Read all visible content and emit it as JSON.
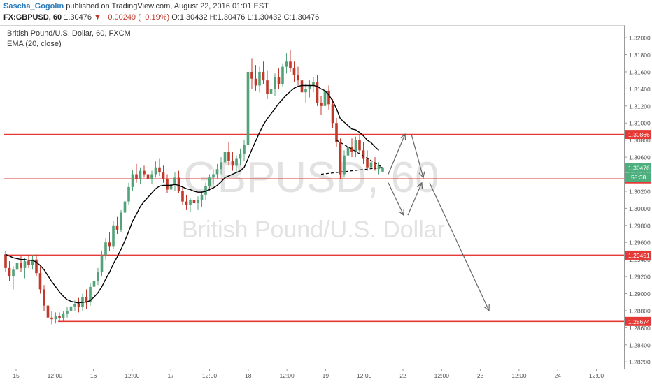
{
  "header": {
    "author": "Sascha_Gogolin",
    "published": " published on TradingView.com, August 22, 2016 01:01 EST",
    "symbol": "FX:GBPUSD, 60",
    "last": " 1.30476 ",
    "change": "▼ −0.00249 (−0.19%)",
    "ohlc": " O:1.30432 H:1.30476 L:1.30432 C:1.30476"
  },
  "legend": {
    "series": "British Pound/U.S. Dollar, 60, FXCM",
    "indicator": "EMA (20, close)"
  },
  "watermark": {
    "symbol": "GBPUSD, 60",
    "name": "British Pound/U.S. Dollar"
  },
  "colors": {
    "up": "#53a37a",
    "down": "#c0392b",
    "level": "#e53935",
    "ema": "#000000",
    "arrow": "#666666",
    "current": "#4caf7d"
  },
  "chart_data": {
    "type": "candlestick",
    "instrument": "GBPUSD",
    "timeframe": "60",
    "x_ticks": [
      "15",
      "12:00",
      "16",
      "12:00",
      "17",
      "12:00",
      "18",
      "12:00",
      "19",
      "12:00",
      "22",
      "12:00",
      "23",
      "12:00",
      "24",
      "12:00"
    ],
    "y_ticks": [
      1.282,
      1.284,
      1.286,
      1.288,
      1.29,
      1.292,
      1.294,
      1.296,
      1.298,
      1.3,
      1.302,
      1.304,
      1.306,
      1.308,
      1.31,
      1.312,
      1.314,
      1.316,
      1.318,
      1.32
    ],
    "y_tick_labels": [
      "1.28200",
      "1.28400",
      "1.28600",
      "1.28800",
      "1.29000",
      "1.29200",
      "1.29400",
      "1.29600",
      "1.29800",
      "1.30000",
      "1.30200",
      "1.30400",
      "1.30600",
      "1.30800",
      "1.31000",
      "1.31200",
      "1.31400",
      "1.31600",
      "1.31800",
      "1.32000"
    ],
    "ylim": [
      1.2812,
      1.3214
    ],
    "levels": [
      {
        "value": 1.30866,
        "label": "1.30866",
        "x_start": 0
      },
      {
        "value": 1.30345,
        "label": "1.30345",
        "x_start": 0
      },
      {
        "value": 1.29451,
        "label": "1.29451",
        "x_start": 0
      },
      {
        "value": 1.28674,
        "label": "1.28674",
        "x_start": 14
      }
    ],
    "current_price": {
      "value": 1.30476,
      "label": "1.30476",
      "timer": "58:38"
    },
    "ohlc": [
      [
        1.2946,
        1.295,
        1.2925,
        1.293
      ],
      [
        1.293,
        1.2938,
        1.2915,
        1.292
      ],
      [
        1.292,
        1.2932,
        1.2905,
        1.2928
      ],
      [
        1.2928,
        1.294,
        1.2922,
        1.2936
      ],
      [
        1.2936,
        1.2944,
        1.2925,
        1.293
      ],
      [
        1.293,
        1.2942,
        1.2918,
        1.2938
      ],
      [
        1.2938,
        1.2946,
        1.293,
        1.2934
      ],
      [
        1.2934,
        1.2945,
        1.2928,
        1.294
      ],
      [
        1.294,
        1.2946,
        1.292,
        1.2924
      ],
      [
        1.2924,
        1.2932,
        1.29,
        1.2905
      ],
      [
        1.2905,
        1.291,
        1.288,
        1.2886
      ],
      [
        1.2886,
        1.2892,
        1.2868,
        1.2872
      ],
      [
        1.2872,
        1.288,
        1.2864,
        1.287
      ],
      [
        1.287,
        1.2878,
        1.2865,
        1.2874
      ],
      [
        1.2874,
        1.2878,
        1.2867,
        1.2871
      ],
      [
        1.2871,
        1.2879,
        1.2868,
        1.2876
      ],
      [
        1.2876,
        1.2884,
        1.2872,
        1.288
      ],
      [
        1.288,
        1.2888,
        1.2874,
        1.2885
      ],
      [
        1.2885,
        1.2892,
        1.288,
        1.2888
      ],
      [
        1.2888,
        1.2895,
        1.2878,
        1.2884
      ],
      [
        1.2884,
        1.29,
        1.288,
        1.2896
      ],
      [
        1.2896,
        1.2905,
        1.2882,
        1.289
      ],
      [
        1.289,
        1.2912,
        1.2886,
        1.2908
      ],
      [
        1.2908,
        1.292,
        1.29,
        1.2915
      ],
      [
        1.2915,
        1.293,
        1.291,
        1.2925
      ],
      [
        1.2925,
        1.295,
        1.292,
        1.2945
      ],
      [
        1.2945,
        1.2965,
        1.294,
        1.296
      ],
      [
        1.296,
        1.2972,
        1.295,
        1.2955
      ],
      [
        1.2955,
        1.2985,
        1.2952,
        1.298
      ],
      [
        1.298,
        1.299,
        1.297,
        1.2975
      ],
      [
        1.2975,
        1.2998,
        1.2972,
        1.2995
      ],
      [
        1.2995,
        1.3012,
        1.299,
        1.3008
      ],
      [
        1.3008,
        1.303,
        1.3004,
        1.3025
      ],
      [
        1.3025,
        1.3045,
        1.302,
        1.304
      ],
      [
        1.304,
        1.3052,
        1.303,
        1.3035
      ],
      [
        1.3035,
        1.3048,
        1.3028,
        1.3044
      ],
      [
        1.3044,
        1.305,
        1.3036,
        1.304
      ],
      [
        1.304,
        1.3048,
        1.303,
        1.3034
      ],
      [
        1.3034,
        1.3044,
        1.3028,
        1.304
      ],
      [
        1.304,
        1.3055,
        1.3036,
        1.3048
      ],
      [
        1.3048,
        1.3058,
        1.3038,
        1.3042
      ],
      [
        1.3042,
        1.305,
        1.303,
        1.3034
      ],
      [
        1.3034,
        1.304,
        1.3018,
        1.3022
      ],
      [
        1.3022,
        1.3032,
        1.3016,
        1.3028
      ],
      [
        1.3028,
        1.3042,
        1.302,
        1.3036
      ],
      [
        1.3036,
        1.3044,
        1.3018,
        1.302
      ],
      [
        1.302,
        1.3026,
        1.3004,
        1.3008
      ],
      [
        1.3008,
        1.3016,
        1.2998,
        1.3004
      ],
      [
        1.3004,
        1.3012,
        1.2996,
        1.301
      ],
      [
        1.301,
        1.3018,
        1.3,
        1.3006
      ],
      [
        1.3006,
        1.3014,
        1.2998,
        1.301
      ],
      [
        1.301,
        1.302,
        1.3002,
        1.3016
      ],
      [
        1.3016,
        1.303,
        1.301,
        1.3026
      ],
      [
        1.3026,
        1.304,
        1.302,
        1.3036
      ],
      [
        1.3036,
        1.3046,
        1.3028,
        1.304
      ],
      [
        1.304,
        1.3052,
        1.3034,
        1.3046
      ],
      [
        1.3046,
        1.306,
        1.304,
        1.3054
      ],
      [
        1.3054,
        1.307,
        1.3048,
        1.3066
      ],
      [
        1.3066,
        1.3078,
        1.305,
        1.3056
      ],
      [
        1.3056,
        1.3066,
        1.3044,
        1.305
      ],
      [
        1.305,
        1.3062,
        1.3042,
        1.3058
      ],
      [
        1.3058,
        1.307,
        1.305,
        1.3064
      ],
      [
        1.3064,
        1.308,
        1.3056,
        1.3074
      ],
      [
        1.3074,
        1.317,
        1.307,
        1.316
      ],
      [
        1.316,
        1.3176,
        1.314,
        1.3152
      ],
      [
        1.3152,
        1.3168,
        1.3138,
        1.3144
      ],
      [
        1.3144,
        1.3166,
        1.3136,
        1.316
      ],
      [
        1.316,
        1.3172,
        1.3146,
        1.315
      ],
      [
        1.315,
        1.3162,
        1.3128,
        1.3134
      ],
      [
        1.3134,
        1.3148,
        1.3124,
        1.314
      ],
      [
        1.314,
        1.3158,
        1.3132,
        1.3154
      ],
      [
        1.3154,
        1.3164,
        1.314,
        1.3146
      ],
      [
        1.3146,
        1.317,
        1.3142,
        1.3166
      ],
      [
        1.3166,
        1.3182,
        1.3158,
        1.3172
      ],
      [
        1.3172,
        1.3186,
        1.316,
        1.3164
      ],
      [
        1.3164,
        1.3172,
        1.3148,
        1.3156
      ],
      [
        1.3156,
        1.3166,
        1.3144,
        1.315
      ],
      [
        1.315,
        1.316,
        1.313,
        1.3136
      ],
      [
        1.3136,
        1.3146,
        1.3124,
        1.314
      ],
      [
        1.314,
        1.315,
        1.313,
        1.3144
      ],
      [
        1.3144,
        1.3154,
        1.3136,
        1.3148
      ],
      [
        1.3148,
        1.3156,
        1.312,
        1.3124
      ],
      [
        1.3124,
        1.3132,
        1.311,
        1.312
      ],
      [
        1.312,
        1.3144,
        1.311,
        1.3138
      ],
      [
        1.3138,
        1.3144,
        1.3116,
        1.3122
      ],
      [
        1.3122,
        1.3128,
        1.3094,
        1.31
      ],
      [
        1.31,
        1.3106,
        1.3072,
        1.3078
      ],
      [
        1.3078,
        1.3082,
        1.3034,
        1.304
      ],
      [
        1.304,
        1.3068,
        1.3036,
        1.3062
      ],
      [
        1.3062,
        1.3078,
        1.3056,
        1.3072
      ],
      [
        1.3072,
        1.3082,
        1.306,
        1.3066
      ],
      [
        1.3066,
        1.3084,
        1.306,
        1.308
      ],
      [
        1.308,
        1.3086,
        1.3064,
        1.3068
      ],
      [
        1.3068,
        1.3078,
        1.3052,
        1.3058
      ],
      [
        1.3058,
        1.3068,
        1.3044,
        1.3048
      ],
      [
        1.3048,
        1.306,
        1.304,
        1.3054
      ],
      [
        1.3054,
        1.306,
        1.3044,
        1.3046
      ],
      [
        1.3046,
        1.3054,
        1.304,
        1.305
      ],
      [
        1.3043,
        1.3048,
        1.3043,
        1.3048
      ]
    ],
    "ema": [
      1.2946,
      1.2944,
      1.2942,
      1.2941,
      1.294,
      1.294,
      1.2939,
      1.2939,
      1.2937,
      1.2933,
      1.2928,
      1.2921,
      1.2914,
      1.2908,
      1.2902,
      1.2897,
      1.2893,
      1.2891,
      1.289,
      1.2889,
      1.289,
      1.289,
      1.2892,
      1.2896,
      1.2901,
      1.2908,
      1.2917,
      1.2925,
      1.2935,
      1.2943,
      1.2952,
      1.2962,
      1.2973,
      1.2985,
      1.2993,
      1.3002,
      1.3008,
      1.3013,
      1.3018,
      1.3023,
      1.3026,
      1.3027,
      1.3027,
      1.3027,
      1.3028,
      1.3027,
      1.3025,
      1.3023,
      1.3022,
      1.302,
      1.3019,
      1.3019,
      1.302,
      1.3022,
      1.3024,
      1.3027,
      1.3031,
      1.3036,
      1.3038,
      1.304,
      1.3042,
      1.3044,
      1.3048,
      1.3058,
      1.3069,
      1.3079,
      1.3089,
      1.3098,
      1.3105,
      1.3111,
      1.3117,
      1.3123,
      1.3128,
      1.3133,
      1.3137,
      1.3141,
      1.3143,
      1.3144,
      1.3144,
      1.3144,
      1.3144,
      1.3143,
      1.314,
      1.3138,
      1.3133,
      1.3126,
      1.3117,
      1.3105,
      1.3101,
      1.3097,
      1.3093,
      1.3092,
      1.3089,
      1.3085,
      1.308,
      1.3077,
      1.3072,
      1.3068
    ],
    "pattern": {
      "type": "descending-triangle"
    },
    "projection_arrows": "scenario arrows: up from triangle toward 1.3087 then down to 1.3030; down from triangle to 1.2995 then up to 1.3030, then down to 1.2880"
  }
}
